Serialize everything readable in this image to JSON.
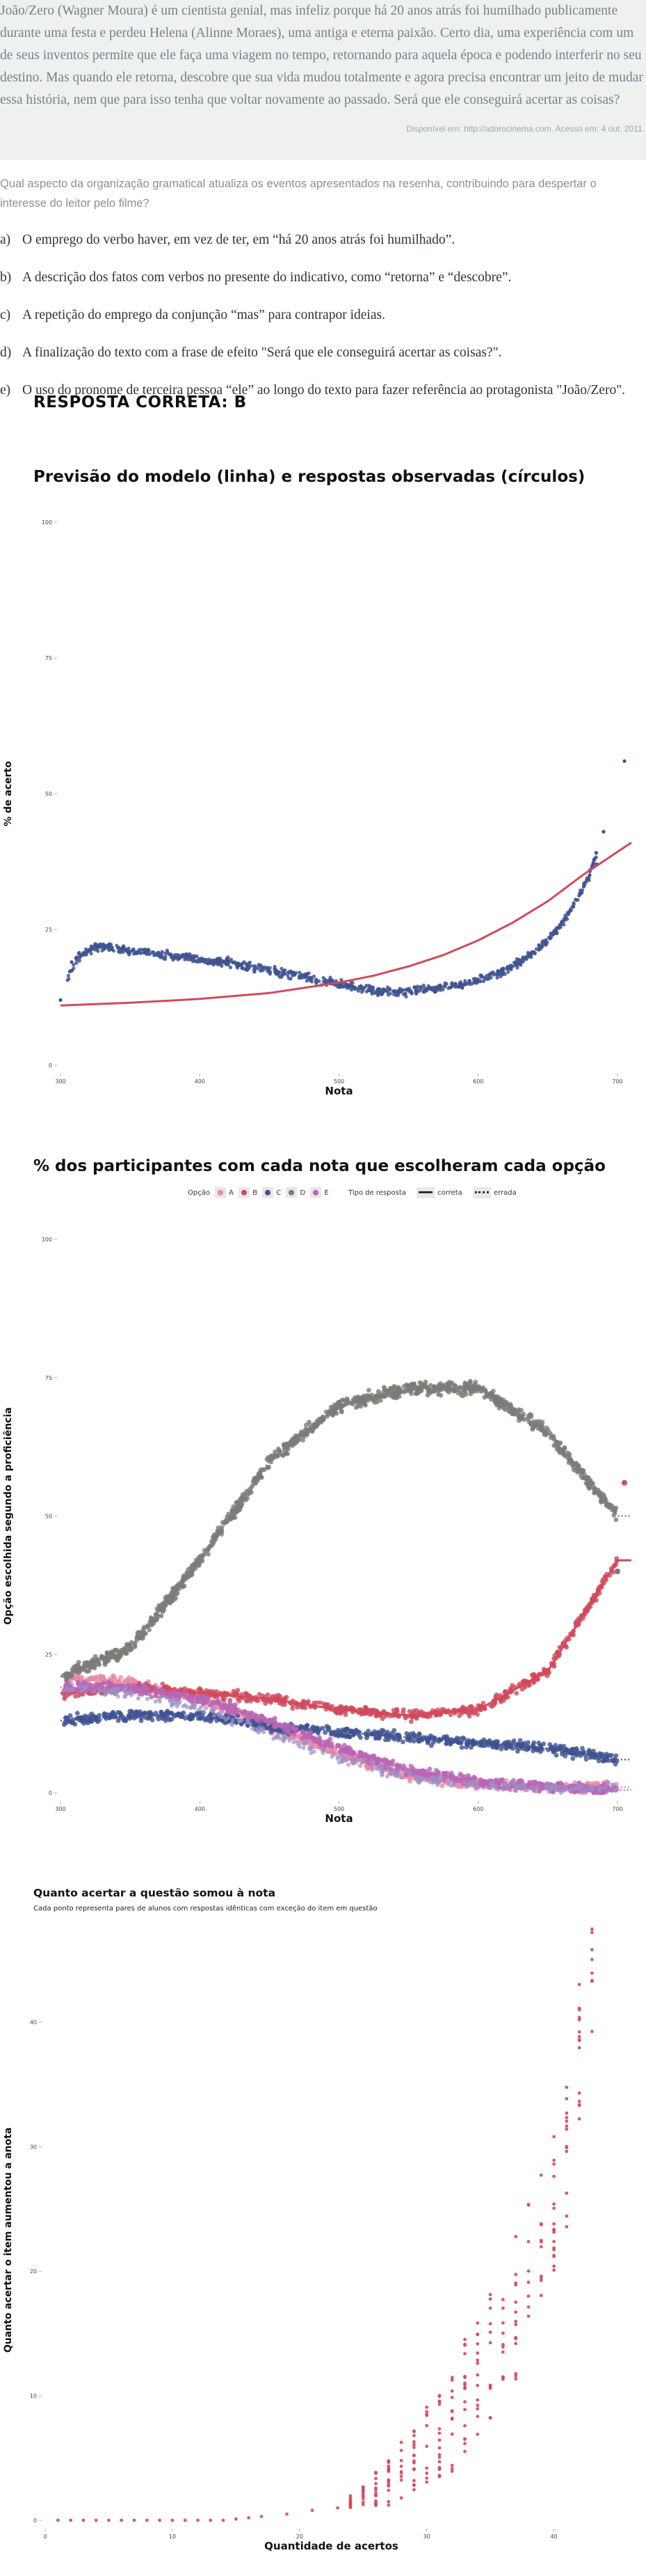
{
  "passage": {
    "text": "João/Zero (Wagner Moura) é um cientista genial, mas infeliz porque há 20 anos atrás foi humilhado publicamente durante uma festa e perdeu Helena (Alinne Moraes), uma antiga e eterna paixão. Certo dia, uma experiência com um de seus inventos permite que ele faça uma viagem no tempo, retornando para aquela época e podendo interferir no seu destino. Mas quando ele retorna, descobre que sua vida mudou totalmente e agora precisa encontrar um jeito de mudar essa história, nem que para isso tenha que voltar novamente ao passado. Será que ele conseguirá acertar as coisas?",
    "source": "Disponível em: http://adorocinema.com. Acesso em: 4 out. 2011."
  },
  "question": {
    "text": "Qual aspecto da organização gramatical atualiza os eventos apresentados na resenha, contribuindo para despertar o interesse do leitor pelo filme?",
    "options": [
      {
        "letter": "a)",
        "text": "O emprego do verbo haver, em vez de ter, em “há 20 anos atrás foi humilhado”."
      },
      {
        "letter": "b)",
        "text": "A descrição dos fatos com verbos no presente do indicativo, como “retorna” e “descobre”."
      },
      {
        "letter": "c)",
        "text": "A repetição do emprego da conjunção “mas” para contrapor ideias."
      },
      {
        "letter": "d)",
        "text": "A finalização do texto com a frase de efeito \"Será que ele conseguirá acertar as coisas?\"."
      },
      {
        "letter": "e)",
        "text": "O uso do pronome de terceira pessoa “ele” ao longo do texto para fazer referência ao protagonista \"João/Zero\"."
      }
    ],
    "answer": "RESPOSTA CORRETA: B"
  },
  "colors": {
    "blue": "#3f5391",
    "red": "#d14a5b",
    "gray": "#7d7b78",
    "pink": "#e889a6",
    "lavender": "#9a8fc9",
    "violet": "#b866b5",
    "gridline": "#e6e6e6"
  },
  "legend2": {
    "option_title": "Opção",
    "options": [
      "A",
      "B",
      "C",
      "D",
      "E"
    ],
    "type_title": "Tipo de resposta",
    "types": [
      "correta",
      "errada"
    ]
  },
  "chart_data": [
    {
      "type": "scatter",
      "title": "Previsão do modelo (linha) e respostas observadas (círculos)",
      "xlabel": "Nota",
      "ylabel": "% de acerto",
      "xlim": [
        300,
        700
      ],
      "ylim": [
        0,
        100
      ],
      "xticks": [
        300,
        400,
        500,
        600,
        700
      ],
      "yticks": [
        0,
        25,
        50,
        75,
        100
      ],
      "grid": false,
      "series": [
        {
          "kind": "points",
          "x": [
            300,
            310,
            320,
            330,
            340,
            350,
            360,
            370,
            380,
            390,
            400,
            410,
            420,
            430,
            440,
            450,
            460,
            470,
            480,
            490,
            500,
            510,
            520,
            530,
            540,
            550,
            560,
            570,
            580,
            590,
            600,
            610,
            620,
            630,
            640,
            650,
            660,
            670,
            680,
            690,
            700
          ],
          "y": [
            12,
            19,
            21,
            22,
            21.5,
            21,
            21,
            20.5,
            20,
            20,
            19.5,
            19,
            19,
            18.5,
            18,
            17.5,
            17,
            16.5,
            16,
            15.5,
            15,
            14.5,
            14,
            13.5,
            13.5,
            13.5,
            14,
            14,
            14.5,
            15,
            15.5,
            16.5,
            17.5,
            19,
            21,
            23,
            26,
            30,
            35,
            43,
            56
          ]
        },
        {
          "kind": "line",
          "x": [
            300,
            350,
            400,
            450,
            500,
            525,
            550,
            575,
            600,
            625,
            650,
            675,
            710
          ],
          "y": [
            11,
            11.5,
            12.2,
            13.3,
            15.2,
            16.5,
            18.2,
            20.3,
            23,
            26.3,
            30.2,
            35,
            41
          ]
        }
      ]
    },
    {
      "type": "scatter",
      "title": "% dos participantes com cada nota que escolheram cada opção",
      "xlabel": "Nota",
      "ylabel": "Opção escolhida segundo a proficiência",
      "xlim": [
        300,
        700
      ],
      "ylim": [
        0,
        100
      ],
      "xticks": [
        300,
        400,
        500,
        600,
        700
      ],
      "yticks": [
        0,
        25,
        50,
        75,
        100
      ],
      "grid": false,
      "series": [
        {
          "name": "A",
          "x": [
            300,
            350,
            400,
            450,
            500,
            550,
            600,
            650,
            700
          ],
          "y": [
            21,
            20,
            17,
            12,
            7,
            3,
            1.5,
            1,
            1
          ]
        },
        {
          "name": "B",
          "x": [
            300,
            350,
            400,
            450,
            500,
            550,
            600,
            650,
            700
          ],
          "y": [
            18,
            19,
            18,
            17,
            15,
            14,
            15,
            22,
            42
          ]
        },
        {
          "name": "C",
          "x": [
            300,
            350,
            400,
            450,
            500,
            550,
            600,
            650,
            700
          ],
          "y": [
            13,
            14,
            14,
            12,
            11,
            10,
            9,
            8,
            6
          ]
        },
        {
          "name": "D",
          "x": [
            300,
            350,
            400,
            450,
            500,
            550,
            600,
            650,
            700
          ],
          "y": [
            21,
            26,
            42,
            60,
            70,
            73,
            73,
            65,
            50
          ]
        },
        {
          "name": "E",
          "x": [
            300,
            350,
            400,
            450,
            500,
            550,
            600,
            650,
            700
          ],
          "y": [
            19,
            19,
            17,
            13,
            8,
            4,
            2,
            1,
            0.5
          ]
        }
      ]
    },
    {
      "type": "scatter",
      "title": "Quanto acertar a questão somou à nota",
      "subtitle": "Cada ponto representa pares de alunos com respostas idênticas com exceção do item em questão",
      "xlabel": "Quantidade de acertos",
      "ylabel": "Quanto acertar o item aumentou a anota",
      "xlim": [
        0,
        45
      ],
      "ylim": [
        0,
        45
      ],
      "xticks": [
        0,
        10,
        20,
        30,
        40
      ],
      "yticks": [
        0,
        10,
        20,
        30,
        40
      ],
      "grid": false,
      "points": {
        "x": [
          1,
          2,
          3,
          4,
          5,
          6,
          7,
          8,
          9,
          10,
          11,
          12,
          13,
          14,
          15,
          16,
          17,
          19,
          21,
          23,
          24,
          25,
          26,
          27,
          28,
          29,
          30,
          31,
          32,
          33,
          34,
          35,
          36,
          37,
          38,
          39,
          40,
          41,
          42,
          43
        ],
        "y": [
          0,
          0,
          0,
          0,
          0,
          0,
          0,
          0,
          0,
          0,
          0,
          0,
          0,
          0,
          0.1,
          0.2,
          0.3,
          0.5,
          0.8,
          1,
          1.5,
          2,
          2.5,
          3,
          4,
          5,
          6,
          7,
          8,
          10,
          11,
          13,
          15,
          17,
          20,
          22,
          25,
          29,
          38,
          45
        ]
      }
    }
  ]
}
